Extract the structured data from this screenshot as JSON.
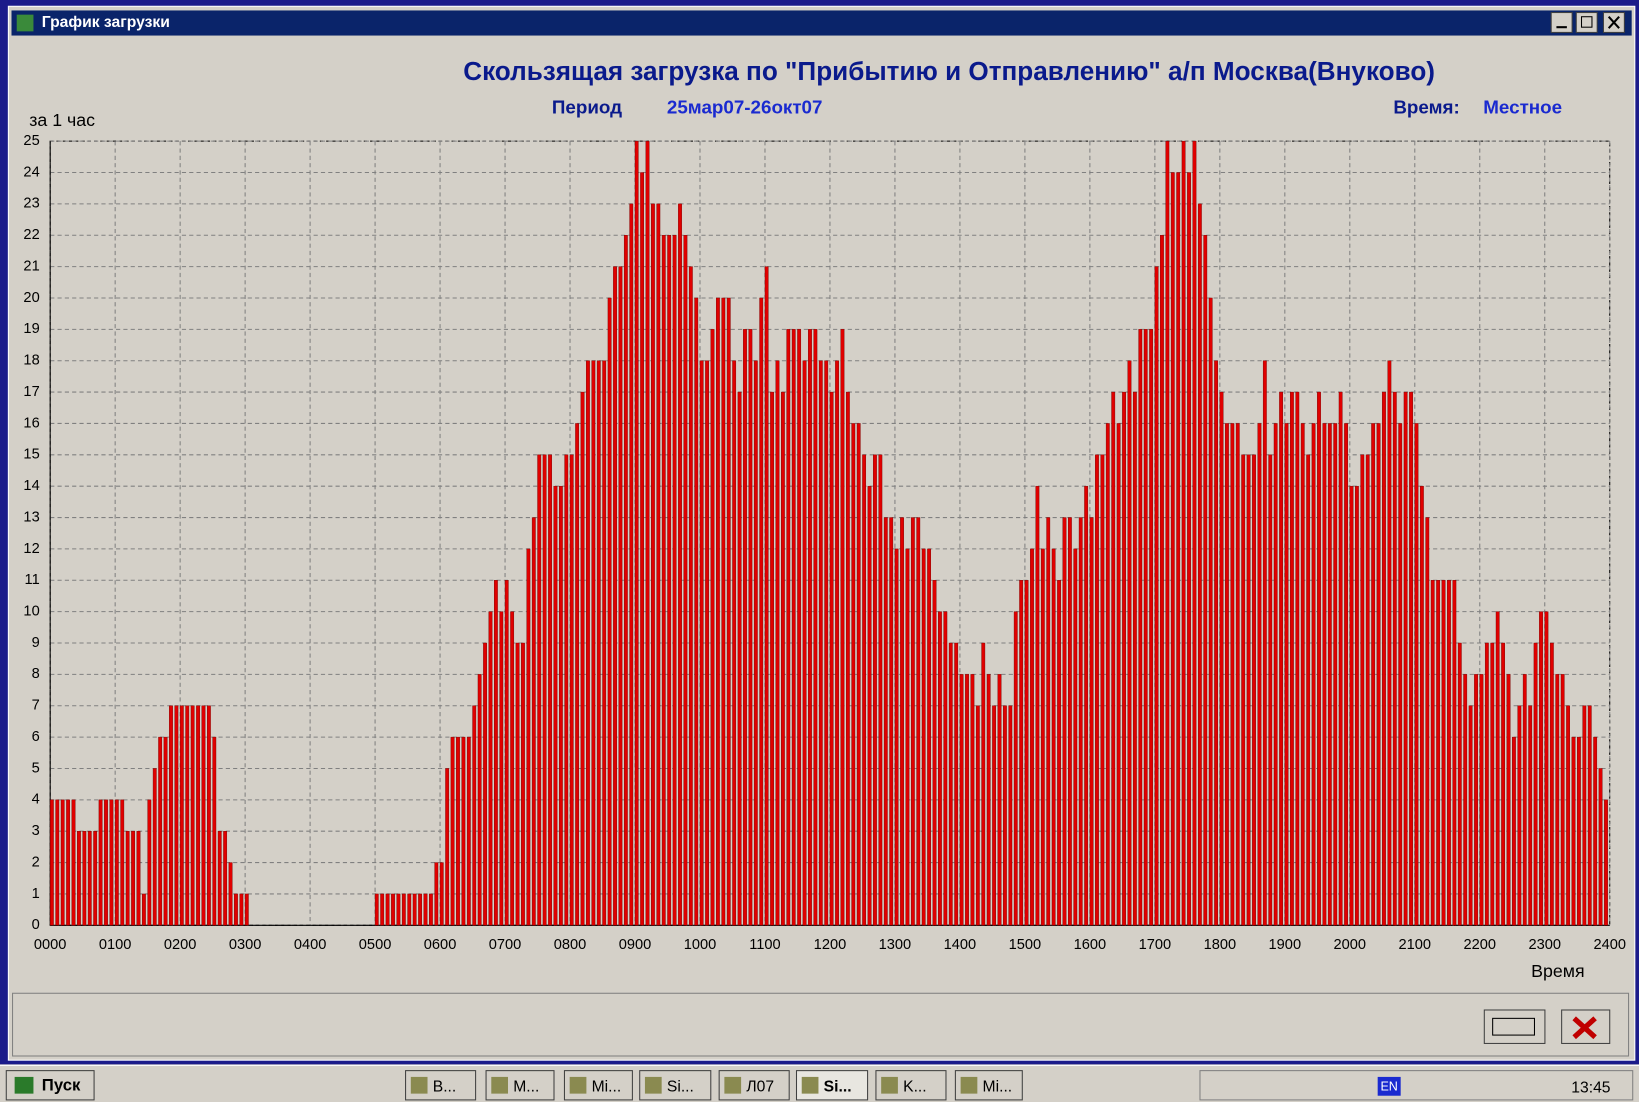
{
  "window": {
    "title": "График загрузки"
  },
  "header": {
    "period_label": "Период",
    "period": "25мар07-26окт07",
    "time_label": "Время:",
    "time_value": "Местное"
  },
  "chart_data": {
    "type": "bar",
    "title": "Скользящая загрузка по \"Прибытию и Отправлению\" а/п Москва(Внуково)",
    "y_label": "за 1 час",
    "x_label": "Время",
    "color": "#e00000",
    "grid": true,
    "xlim": [
      0,
      1440
    ],
    "ylim": [
      0,
      25
    ],
    "yticks": [
      0,
      1,
      2,
      3,
      4,
      5,
      6,
      7,
      8,
      9,
      10,
      11,
      12,
      13,
      14,
      15,
      16,
      17,
      18,
      19,
      20,
      21,
      22,
      23,
      24,
      25
    ],
    "xticks": [
      {
        "value": 0,
        "label": "0000"
      },
      {
        "value": 60,
        "label": "0100"
      },
      {
        "value": 120,
        "label": "0200"
      },
      {
        "value": 180,
        "label": "0300"
      },
      {
        "value": 240,
        "label": "0400"
      },
      {
        "value": 300,
        "label": "0500"
      },
      {
        "value": 360,
        "label": "0600"
      },
      {
        "value": 420,
        "label": "0700"
      },
      {
        "value": 480,
        "label": "0800"
      },
      {
        "value": 540,
        "label": "0900"
      },
      {
        "value": 600,
        "label": "1000"
      },
      {
        "value": 660,
        "label": "1100"
      },
      {
        "value": 720,
        "label": "1200"
      },
      {
        "value": 780,
        "label": "1300"
      },
      {
        "value": 840,
        "label": "1400"
      },
      {
        "value": 900,
        "label": "1500"
      },
      {
        "value": 960,
        "label": "1600"
      },
      {
        "value": 1020,
        "label": "1700"
      },
      {
        "value": 1080,
        "label": "1800"
      },
      {
        "value": 1140,
        "label": "1900"
      },
      {
        "value": 1200,
        "label": "2000"
      },
      {
        "value": 1260,
        "label": "2100"
      },
      {
        "value": 1320,
        "label": "2200"
      },
      {
        "value": 1380,
        "label": "2300"
      },
      {
        "value": 1440,
        "label": "2400"
      }
    ],
    "x": [
      0,
      5,
      10,
      15,
      20,
      25,
      30,
      35,
      40,
      45,
      50,
      55,
      60,
      65,
      70,
      75,
      80,
      85,
      90,
      95,
      100,
      105,
      110,
      115,
      120,
      125,
      130,
      135,
      140,
      145,
      150,
      155,
      160,
      165,
      170,
      175,
      180,
      185,
      190,
      195,
      200,
      205,
      210,
      215,
      220,
      225,
      230,
      235,
      240,
      245,
      250,
      255,
      260,
      265,
      270,
      275,
      280,
      285,
      290,
      295,
      300,
      305,
      310,
      315,
      320,
      325,
      330,
      335,
      340,
      345,
      350,
      355,
      360,
      365,
      370,
      375,
      380,
      385,
      390,
      395,
      400,
      405,
      410,
      415,
      420,
      425,
      430,
      435,
      440,
      445,
      450,
      455,
      460,
      465,
      470,
      475,
      480,
      485,
      490,
      495,
      500,
      505,
      510,
      515,
      520,
      525,
      530,
      535,
      540,
      545,
      550,
      555,
      560,
      565,
      570,
      575,
      580,
      585,
      590,
      595,
      600,
      605,
      610,
      615,
      620,
      625,
      630,
      635,
      640,
      645,
      650,
      655,
      660,
      665,
      670,
      675,
      680,
      685,
      690,
      695,
      700,
      705,
      710,
      715,
      720,
      725,
      730,
      735,
      740,
      745,
      750,
      755,
      760,
      765,
      770,
      775,
      780,
      785,
      790,
      795,
      800,
      805,
      810,
      815,
      820,
      825,
      830,
      835,
      840,
      845,
      850,
      855,
      860,
      865,
      870,
      875,
      880,
      885,
      890,
      895,
      900,
      905,
      910,
      915,
      920,
      925,
      930,
      935,
      940,
      945,
      950,
      955,
      960,
      965,
      970,
      975,
      980,
      985,
      990,
      995,
      1000,
      1005,
      1010,
      1015,
      1020,
      1025,
      1030,
      1035,
      1040,
      1045,
      1050,
      1055,
      1060,
      1065,
      1070,
      1075,
      1080,
      1085,
      1090,
      1095,
      1100,
      1105,
      1110,
      1115,
      1120,
      1125,
      1130,
      1135,
      1140,
      1145,
      1150,
      1155,
      1160,
      1165,
      1170,
      1175,
      1180,
      1185,
      1190,
      1195,
      1200,
      1205,
      1210,
      1215,
      1220,
      1225,
      1230,
      1235,
      1240,
      1245,
      1250,
      1255,
      1260,
      1265,
      1270,
      1275,
      1280,
      1285,
      1290,
      1295,
      1300,
      1305,
      1310,
      1315,
      1320,
      1325,
      1330,
      1335,
      1340,
      1345,
      1350,
      1355,
      1360,
      1365,
      1370,
      1375,
      1380,
      1385,
      1390,
      1395,
      1400,
      1405,
      1410,
      1415,
      1420,
      1425,
      1430,
      1435
    ],
    "values": [
      4,
      4,
      4,
      4,
      4,
      3,
      3,
      3,
      3,
      4,
      4,
      4,
      4,
      4,
      3,
      3,
      3,
      1,
      4,
      5,
      6,
      6,
      7,
      7,
      7,
      7,
      7,
      7,
      7,
      7,
      6,
      3,
      3,
      2,
      1,
      1,
      1,
      0,
      0,
      0,
      0,
      0,
      0,
      0,
      0,
      0,
      0,
      0,
      0,
      0,
      0,
      0,
      0,
      0,
      0,
      0,
      0,
      0,
      0,
      0,
      1,
      1,
      1,
      1,
      1,
      1,
      1,
      1,
      1,
      1,
      1,
      2,
      2,
      5,
      6,
      6,
      6,
      6,
      7,
      8,
      9,
      10,
      11,
      10,
      11,
      10,
      9,
      9,
      12,
      13,
      15,
      15,
      15,
      14,
      14,
      15,
      15,
      16,
      17,
      18,
      18,
      18,
      18,
      20,
      21,
      21,
      22,
      23,
      25,
      24,
      25,
      23,
      23,
      22,
      22,
      22,
      23,
      22,
      21,
      20,
      18,
      18,
      19,
      20,
      20,
      20,
      18,
      17,
      19,
      19,
      18,
      20,
      21,
      17,
      18,
      17,
      19,
      19,
      19,
      18,
      19,
      19,
      18,
      18,
      17,
      18,
      19,
      17,
      16,
      16,
      15,
      14,
      15,
      15,
      13,
      13,
      12,
      13,
      12,
      13,
      13,
      12,
      12,
      11,
      10,
      10,
      9,
      9,
      8,
      8,
      8,
      7,
      9,
      8,
      7,
      8,
      7,
      7,
      10,
      11,
      11,
      12,
      14,
      12,
      13,
      12,
      11,
      13,
      13,
      12,
      13,
      14,
      13,
      15,
      15,
      16,
      17,
      16,
      17,
      18,
      17,
      19,
      19,
      19,
      21,
      22,
      25,
      24,
      24,
      25,
      24,
      25,
      23,
      22,
      20,
      18,
      17,
      16,
      16,
      16,
      15,
      15,
      15,
      16,
      18,
      15,
      16,
      17,
      16,
      17,
      17,
      16,
      15,
      16,
      17,
      16,
      16,
      16,
      17,
      16,
      14,
      14,
      15,
      15,
      16,
      16,
      17,
      18,
      17,
      16,
      17,
      17,
      16,
      14,
      13,
      11,
      11,
      11,
      11,
      11,
      9,
      8,
      7,
      8,
      8,
      9,
      9,
      10,
      9,
      8,
      6,
      7,
      8,
      7,
      9,
      10,
      10,
      9,
      8,
      8,
      7,
      6,
      6,
      7,
      7,
      6,
      5,
      4
    ]
  },
  "taskbar": {
    "start": "Пуск",
    "items": [
      "B...",
      "M...",
      "Mi...",
      "Si...",
      "Л07",
      "Si...",
      "K...",
      "Mi..."
    ],
    "lang": "EN",
    "clock": "13:45"
  }
}
